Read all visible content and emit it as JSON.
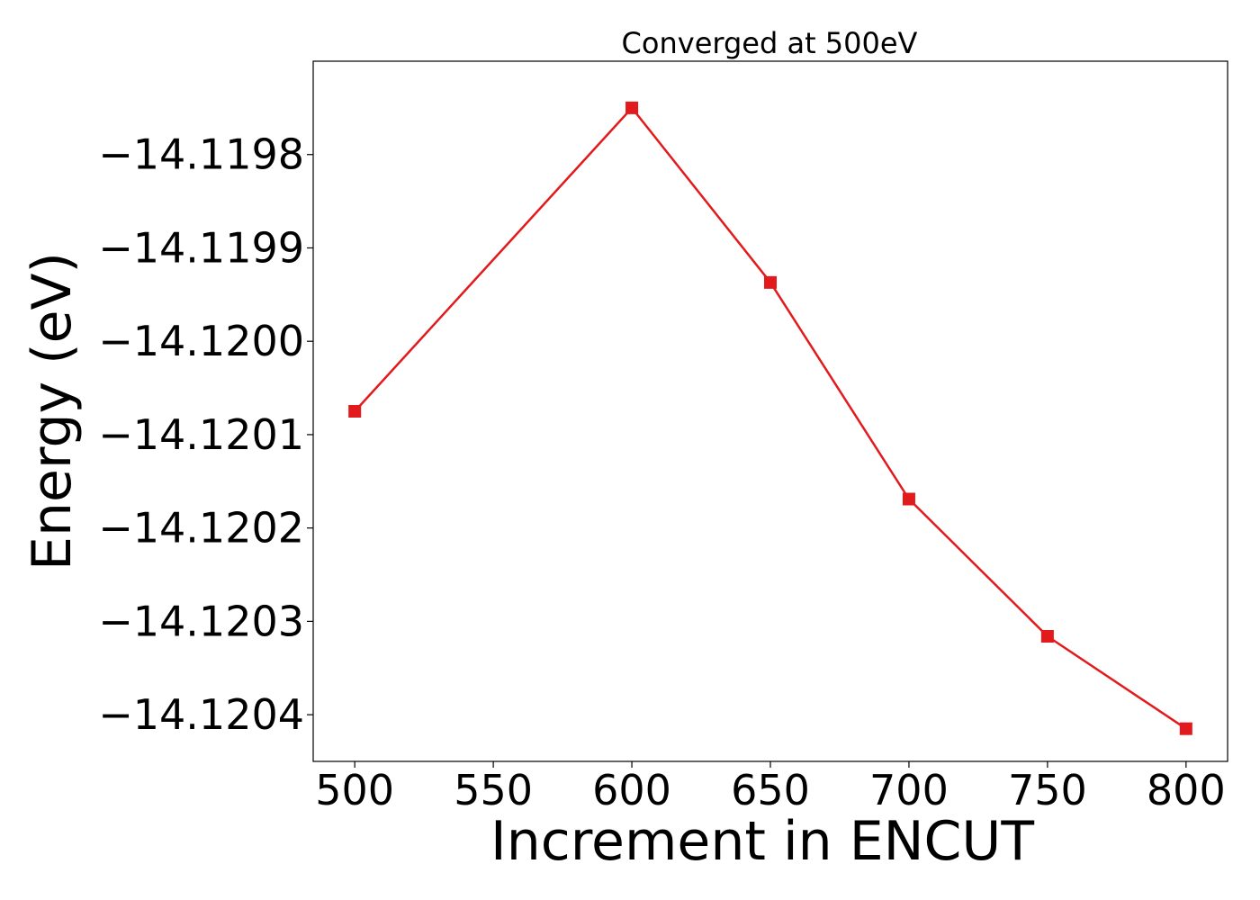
{
  "chart_data": {
    "type": "line",
    "title": "Converged at 500eV",
    "xlabel": "Increment in ENCUT",
    "ylabel": "Energy (eV)",
    "x": [
      500,
      600,
      650,
      700,
      750,
      800
    ],
    "series": [
      {
        "values": [
          -14.120075,
          -14.11975,
          -14.119937,
          -14.120169,
          -14.120316,
          -14.120415
        ],
        "color": "#e31a1c",
        "marker": "square"
      }
    ],
    "xticks": [
      500,
      550,
      600,
      650,
      700,
      750,
      800
    ],
    "xtick_labels": [
      "500",
      "550",
      "600",
      "650",
      "700",
      "750",
      "800"
    ],
    "yticks": [
      -14.1198,
      -14.1199,
      -14.12,
      -14.1201,
      -14.1202,
      -14.1203,
      -14.1204
    ],
    "ytick_labels": [
      "−14.1198",
      "−14.1199",
      "−14.1200",
      "−14.1201",
      "−14.1202",
      "−14.1203",
      "−14.1204"
    ],
    "xlim": [
      485,
      815
    ],
    "ylim": [
      -14.12045,
      -14.1197
    ],
    "grid": false,
    "legend": "none"
  }
}
